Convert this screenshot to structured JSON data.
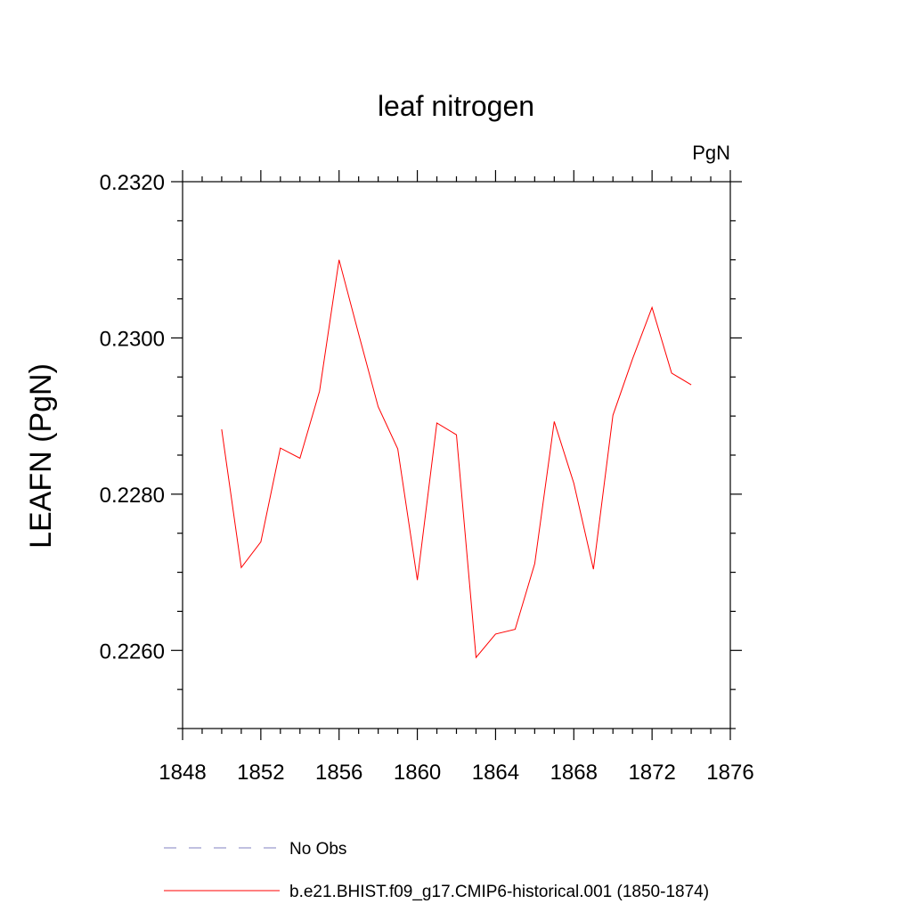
{
  "chart_data": {
    "type": "line",
    "title": "leaf nitrogen",
    "units_label": "PgN",
    "ylabel": "LEAFN  (PgN)",
    "xlabel": "",
    "xlim": [
      1848,
      1876
    ],
    "ylim": [
      0.225,
      0.232
    ],
    "x_ticks": [
      1848,
      1852,
      1856,
      1860,
      1864,
      1868,
      1872,
      1876
    ],
    "x_tick_labels": [
      "1848",
      "1852",
      "1856",
      "1860",
      "1864",
      "1868",
      "1872",
      "1876"
    ],
    "y_ticks": [
      0.226,
      0.228,
      0.23,
      0.232
    ],
    "y_tick_labels": [
      "0.2260",
      "0.2280",
      "0.2300",
      "0.2320"
    ],
    "grid": false,
    "legend_position": "bottom",
    "series": [
      {
        "name": "b.e21.BHIST.f09_g17.CMIP6-historical.001 (1850-1874)",
        "color": "#ff0000",
        "style": "solid",
        "x": [
          1850,
          1851,
          1852,
          1853,
          1854,
          1855,
          1856,
          1857,
          1858,
          1859,
          1860,
          1861,
          1862,
          1863,
          1864,
          1865,
          1866,
          1867,
          1868,
          1869,
          1870,
          1871,
          1872,
          1873,
          1874
        ],
        "y": [
          0.22883,
          0.22706,
          0.22739,
          0.22859,
          0.22846,
          0.22932,
          0.231,
          0.23005,
          0.22912,
          0.22858,
          0.2269,
          0.22891,
          0.22876,
          0.22591,
          0.22621,
          0.22627,
          0.22711,
          0.22893,
          0.22814,
          0.22704,
          0.22901,
          0.22973,
          0.23039,
          0.22955,
          0.2294
        ]
      }
    ],
    "legend": [
      {
        "label": "No Obs",
        "color": "#8080c0",
        "style": "dashed"
      },
      {
        "label": "b.e21.BHIST.f09_g17.CMIP6-historical.001 (1850-1874)",
        "color": "#ff0000",
        "style": "solid"
      }
    ]
  }
}
